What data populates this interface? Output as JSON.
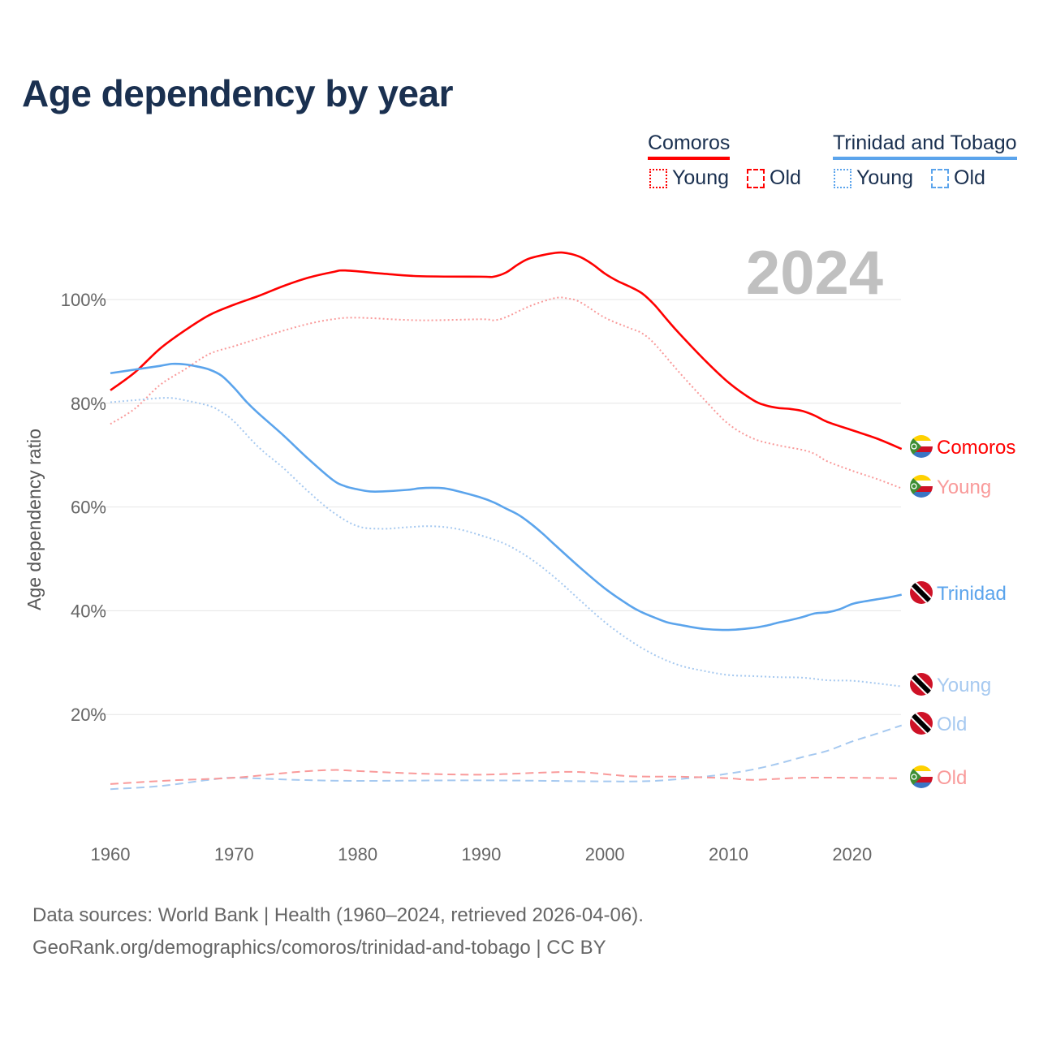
{
  "title": "Age dependency by year",
  "legend": {
    "groups": [
      {
        "country": "Comoros",
        "color": "#ff0000",
        "young": "Young",
        "old": "Old"
      },
      {
        "country": "Trinidad and Tobago",
        "color": "#5ba4ec",
        "young": "Young",
        "old": "Old"
      }
    ]
  },
  "year_watermark": "2024",
  "source": {
    "line1": "Data sources: World Bank | Health (1960–2024, retrieved 2026-04-06).",
    "line2": "GeoRank.org/demographics/comoros/trinidad-and-tobago | CC BY"
  },
  "chart_data": {
    "type": "line",
    "title": "Age dependency by year",
    "xlabel": "",
    "ylabel": "Age dependency ratio",
    "xlim": [
      1960,
      2024
    ],
    "ylim": [
      0,
      112
    ],
    "x_ticks": [
      "1960",
      "1970",
      "1980",
      "1990",
      "2000",
      "2010",
      "2020"
    ],
    "y_ticks": [
      "20%",
      "40%",
      "60%",
      "80%",
      "100%"
    ],
    "grid": true,
    "series": [
      {
        "name": "Comoros",
        "end_label": "Comoros",
        "color": "#ff0000",
        "style": "solid",
        "flag": "comoros",
        "points": [
          [
            1960,
            82.5
          ],
          [
            1962,
            86
          ],
          [
            1964,
            90.5
          ],
          [
            1966,
            94
          ],
          [
            1968,
            97
          ],
          [
            1970,
            99
          ],
          [
            1972,
            100.7
          ],
          [
            1974,
            102.6
          ],
          [
            1976,
            104.2
          ],
          [
            1978,
            105.3
          ],
          [
            1979,
            105.6
          ],
          [
            1982,
            105
          ],
          [
            1985,
            104.5
          ],
          [
            1990,
            104.4
          ],
          [
            1991,
            104.4
          ],
          [
            1992,
            105.2
          ],
          [
            1993,
            106.8
          ],
          [
            1994,
            108
          ],
          [
            1996,
            109
          ],
          [
            1997,
            108.9
          ],
          [
            1998,
            108.2
          ],
          [
            1999,
            106.8
          ],
          [
            2000,
            105
          ],
          [
            2001,
            103.6
          ],
          [
            2002,
            102.5
          ],
          [
            2003,
            101.2
          ],
          [
            2004,
            99
          ],
          [
            2005,
            96.2
          ],
          [
            2006,
            93.5
          ],
          [
            2008,
            88.5
          ],
          [
            2010,
            84
          ],
          [
            2012,
            80.6
          ],
          [
            2013,
            79.6
          ],
          [
            2014,
            79.1
          ],
          [
            2015,
            78.9
          ],
          [
            2016,
            78.5
          ],
          [
            2017,
            77.6
          ],
          [
            2018,
            76.4
          ],
          [
            2020,
            74.8
          ],
          [
            2022,
            73.2
          ],
          [
            2024,
            71.2
          ]
        ]
      },
      {
        "name": "Comoros Young",
        "end_label": "Young",
        "color": "#f99a9a",
        "style": "dotted",
        "flag": "comoros",
        "points": [
          [
            1960,
            76
          ],
          [
            1962,
            79
          ],
          [
            1964,
            83.5
          ],
          [
            1966,
            86.5
          ],
          [
            1968,
            89.5
          ],
          [
            1970,
            91
          ],
          [
            1972,
            92.5
          ],
          [
            1974,
            94
          ],
          [
            1976,
            95.3
          ],
          [
            1978,
            96.2
          ],
          [
            1980,
            96.5
          ],
          [
            1985,
            96
          ],
          [
            1990,
            96.2
          ],
          [
            1991,
            96
          ],
          [
            1992,
            96.6
          ],
          [
            1994,
            98.8
          ],
          [
            1996,
            100.3
          ],
          [
            1997,
            100.2
          ],
          [
            1998,
            99.5
          ],
          [
            2000,
            96.5
          ],
          [
            2002,
            94.5
          ],
          [
            2003,
            93.5
          ],
          [
            2004,
            91.5
          ],
          [
            2006,
            86
          ],
          [
            2008,
            80.8
          ],
          [
            2010,
            76
          ],
          [
            2012,
            73.2
          ],
          [
            2014,
            71.9
          ],
          [
            2016,
            71
          ],
          [
            2017,
            70.2
          ],
          [
            2018,
            68.8
          ],
          [
            2020,
            67
          ],
          [
            2022,
            65.4
          ],
          [
            2024,
            63.6
          ]
        ]
      },
      {
        "name": "Trinidad and Tobago",
        "end_label": "Trinidad",
        "color": "#5ba4ec",
        "style": "solid",
        "flag": "tt",
        "points": [
          [
            1960,
            85.8
          ],
          [
            1962,
            86.5
          ],
          [
            1964,
            87.2
          ],
          [
            1965,
            87.6
          ],
          [
            1966,
            87.5
          ],
          [
            1967,
            87.1
          ],
          [
            1968,
            86.5
          ],
          [
            1969,
            85.3
          ],
          [
            1970,
            83
          ],
          [
            1971,
            80.3
          ],
          [
            1972,
            78
          ],
          [
            1974,
            73.8
          ],
          [
            1976,
            69.3
          ],
          [
            1978,
            65.2
          ],
          [
            1979,
            64
          ],
          [
            1980,
            63.4
          ],
          [
            1981,
            63
          ],
          [
            1982,
            63
          ],
          [
            1984,
            63.3
          ],
          [
            1985,
            63.6
          ],
          [
            1986,
            63.7
          ],
          [
            1987,
            63.6
          ],
          [
            1988,
            63.1
          ],
          [
            1990,
            61.8
          ],
          [
            1991,
            60.9
          ],
          [
            1992,
            59.7
          ],
          [
            1993,
            58.5
          ],
          [
            1994,
            56.8
          ],
          [
            1995,
            54.8
          ],
          [
            1996,
            52.6
          ],
          [
            1998,
            48.3
          ],
          [
            2000,
            44.3
          ],
          [
            2002,
            41
          ],
          [
            2003,
            39.7
          ],
          [
            2004,
            38.7
          ],
          [
            2005,
            37.8
          ],
          [
            2006,
            37.3
          ],
          [
            2008,
            36.5
          ],
          [
            2010,
            36.3
          ],
          [
            2012,
            36.7
          ],
          [
            2013,
            37.1
          ],
          [
            2014,
            37.7
          ],
          [
            2015,
            38.2
          ],
          [
            2016,
            38.8
          ],
          [
            2017,
            39.5
          ],
          [
            2018,
            39.7
          ],
          [
            2019,
            40.3
          ],
          [
            2020,
            41.3
          ],
          [
            2021,
            41.8
          ],
          [
            2022,
            42.2
          ],
          [
            2023,
            42.6
          ],
          [
            2024,
            43.1
          ]
        ]
      },
      {
        "name": "Trinidad and Tobago Young",
        "end_label": "Young",
        "color": "#a6c9f0",
        "style": "dotted",
        "flag": "tt",
        "points": [
          [
            1960,
            80.2
          ],
          [
            1962,
            80.6
          ],
          [
            1964,
            81
          ],
          [
            1965,
            81
          ],
          [
            1966,
            80.6
          ],
          [
            1968,
            79.5
          ],
          [
            1969,
            78.3
          ],
          [
            1970,
            76.5
          ],
          [
            1972,
            71.5
          ],
          [
            1974,
            67.5
          ],
          [
            1976,
            63
          ],
          [
            1978,
            59
          ],
          [
            1980,
            56.3
          ],
          [
            1982,
            55.8
          ],
          [
            1984,
            56.1
          ],
          [
            1986,
            56.3
          ],
          [
            1988,
            55.8
          ],
          [
            1990,
            54.5
          ],
          [
            1992,
            52.8
          ],
          [
            1994,
            50
          ],
          [
            1996,
            46.3
          ],
          [
            1998,
            42
          ],
          [
            2000,
            37.8
          ],
          [
            2002,
            34.3
          ],
          [
            2004,
            31.5
          ],
          [
            2006,
            29.5
          ],
          [
            2008,
            28.4
          ],
          [
            2010,
            27.6
          ],
          [
            2012,
            27.4
          ],
          [
            2014,
            27.2
          ],
          [
            2016,
            27.1
          ],
          [
            2018,
            26.6
          ],
          [
            2020,
            26.5
          ],
          [
            2022,
            26
          ],
          [
            2024,
            25.4
          ]
        ]
      },
      {
        "name": "Trinidad and Tobago Old",
        "end_label": "Old",
        "color": "#a6c9f0",
        "style": "dashed",
        "flag": "tt",
        "points": [
          [
            1960,
            5.6
          ],
          [
            1964,
            6.2
          ],
          [
            1968,
            7.4
          ],
          [
            1970,
            7.8
          ],
          [
            1975,
            7.4
          ],
          [
            1980,
            7.2
          ],
          [
            1990,
            7.3
          ],
          [
            2000,
            7.1
          ],
          [
            2004,
            7.2
          ],
          [
            2008,
            8
          ],
          [
            2010,
            8.6
          ],
          [
            2012,
            9.4
          ],
          [
            2014,
            10.5
          ],
          [
            2016,
            11.8
          ],
          [
            2018,
            13
          ],
          [
            2020,
            14.8
          ],
          [
            2022,
            16.3
          ],
          [
            2024,
            17.9
          ]
        ]
      },
      {
        "name": "Comoros Old",
        "end_label": "Old",
        "color": "#f99a9a",
        "style": "dashed",
        "flag": "comoros",
        "points": [
          [
            1960,
            6.6
          ],
          [
            1965,
            7.3
          ],
          [
            1970,
            7.8
          ],
          [
            1975,
            8.9
          ],
          [
            1978,
            9.3
          ],
          [
            1980,
            9.1
          ],
          [
            1985,
            8.6
          ],
          [
            1990,
            8.4
          ],
          [
            1995,
            8.8
          ],
          [
            1998,
            8.9
          ],
          [
            2002,
            8.1
          ],
          [
            2006,
            8
          ],
          [
            2010,
            7.7
          ],
          [
            2012,
            7.4
          ],
          [
            2016,
            7.8
          ],
          [
            2020,
            7.8
          ],
          [
            2024,
            7.7
          ]
        ]
      }
    ]
  }
}
